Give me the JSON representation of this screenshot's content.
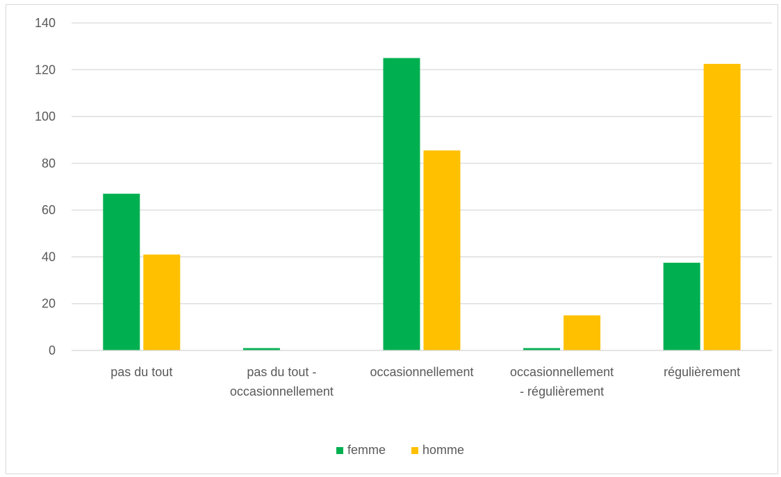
{
  "chart_data": {
    "type": "bar",
    "title": "",
    "xlabel": "",
    "ylabel": "",
    "categories": [
      [
        "pas du tout"
      ],
      [
        "pas du tout -",
        "occasionnellement"
      ],
      [
        "occasionnellement"
      ],
      [
        "occasionnellement",
        "- régulièrement"
      ],
      [
        "régulièrement"
      ]
    ],
    "series": [
      {
        "name": "femme",
        "color": "#00b050",
        "values": [
          67,
          1,
          125,
          1,
          37.5
        ]
      },
      {
        "name": "homme",
        "color": "#ffc000",
        "values": [
          41,
          0,
          85.5,
          15,
          122.5
        ]
      }
    ],
    "ylim": [
      0,
      140
    ],
    "yticks": [
      0,
      20,
      40,
      60,
      80,
      100,
      120,
      140
    ],
    "grid": true,
    "legend_position": "bottom"
  }
}
